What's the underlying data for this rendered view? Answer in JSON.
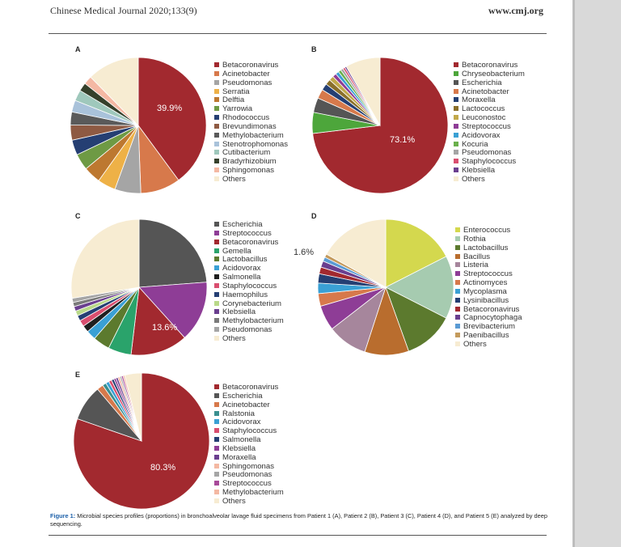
{
  "header": {
    "journal": "Chinese Medical Journal 2020;133(9)",
    "website": "www.cmj.org"
  },
  "caption": {
    "figure": "Figure 1:",
    "text": "Microbial species profiles (proportions) in bronchoalveolar lavage fluid specimens from Patient 1 (A), Patient 2 (B), Patient 3 (C), Patient 4 (D), and Patient 5 (E) analyzed by deep sequencing."
  },
  "chart_data": [
    {
      "panel": "A",
      "type": "pie",
      "highlight_label": "39.9%",
      "labels": [
        "Betacoronavirus",
        "Acinetobacter",
        "Pseudomonas",
        "Serratia",
        "Delftia",
        "Yarrowia",
        "Rhodococcus",
        "Brevundimonas",
        "Methylobacterium",
        "Stenotrophomonas",
        "Cutibacterium",
        "Bradyrhizobium",
        "Sphingomonas",
        "Others"
      ],
      "values": [
        39.9,
        9.5,
        6.2,
        4.3,
        4.1,
        3.9,
        3.6,
        3.6,
        3.1,
        2.8,
        2.6,
        2.0,
        2.0,
        12.4
      ],
      "colors": [
        "#a2292f",
        "#d7794b",
        "#a5a5a5",
        "#eeb147",
        "#bd7830",
        "#6e9a44",
        "#253f73",
        "#8e5a43",
        "#5a5a5a",
        "#a9c2da",
        "#9fc8bc",
        "#35402b",
        "#f4b8a3",
        "#f7ecd2"
      ]
    },
    {
      "panel": "B",
      "type": "pie",
      "highlight_label": "73.1%",
      "labels": [
        "Betacoronavirus",
        "Chryseobacterium",
        "Escherichia",
        "Acinetobacter",
        "Moraxella",
        "Lactococcus",
        "Leuconostoc",
        "Streptococcus",
        "Acidovorax",
        "Kocuria",
        "Pseudomonas",
        "Staphylococcus",
        "Klebsiella",
        "Others"
      ],
      "values": [
        73.1,
        5.0,
        3.5,
        2.2,
        1.6,
        1.3,
        1.1,
        0.9,
        0.8,
        0.7,
        0.6,
        0.5,
        0.4,
        8.3
      ],
      "colors": [
        "#a2292f",
        "#4da63b",
        "#555555",
        "#d7794b",
        "#253f73",
        "#8a6f2a",
        "#c2a94a",
        "#8e3d96",
        "#3aa0d4",
        "#6ab04c",
        "#a5a5a5",
        "#d94e6f",
        "#6a3f8f",
        "#f7ecd2"
      ]
    },
    {
      "panel": "C",
      "type": "pie",
      "highlight_label": "13.6%",
      "labels": [
        "Escherichia",
        "Streptococcus",
        "Betacoronavirus",
        "Gemella",
        "Lactobacillus",
        "Acidovorax",
        "Salmonella",
        "Staphylococcus",
        "Haemophilus",
        "Corynebacterium",
        "Klebsiella",
        "Methylobacterium",
        "Pseudomonas",
        "Others"
      ],
      "values": [
        23.8,
        14.5,
        13.6,
        5.5,
        4.0,
        2.3,
        1.6,
        1.5,
        1.3,
        1.2,
        1.1,
        1.0,
        1.0,
        27.6
      ],
      "colors": [
        "#555555",
        "#8e3d96",
        "#a2292f",
        "#2aa36b",
        "#5c7a2e",
        "#3aa0d4",
        "#1f1f1f",
        "#d94e6f",
        "#253f73",
        "#b9d989",
        "#6a3f8f",
        "#7a7a7a",
        "#a5a5a5",
        "#f7ecd2"
      ]
    },
    {
      "panel": "D",
      "type": "pie",
      "highlight_label": "1.6%",
      "labels": [
        "Enterococcus",
        "Rothia",
        "Lactobacillus",
        "Bacillus",
        "Listeria",
        "Streptococcus",
        "Actinomyces",
        "Mycoplasma",
        "Lysinibacillus",
        "Betacoronavirus",
        "Capnocytophaga",
        "Brevibacterium",
        "Paenibacillus",
        "Others"
      ],
      "values": [
        17.5,
        15.0,
        12.0,
        10.5,
        9.5,
        6.0,
        3.0,
        2.5,
        2.2,
        1.6,
        1.5,
        1.0,
        0.8,
        16.9
      ],
      "colors": [
        "#d4d84e",
        "#a6cbb0",
        "#5c7a2e",
        "#b96d2e",
        "#a6869c",
        "#8e3d96",
        "#d7794b",
        "#3aa0d4",
        "#253f73",
        "#a2292f",
        "#6a3f8f",
        "#5a9bd4",
        "#c49a5c",
        "#f7ecd2"
      ]
    },
    {
      "panel": "E",
      "type": "pie",
      "highlight_label": "80.3%",
      "labels": [
        "Betacoronavirus",
        "Escherichia",
        "Acinetobacter",
        "Ralstonia",
        "Acidovorax",
        "Staphylococcus",
        "Salmonella",
        "Klebsiella",
        "Moraxella",
        "Sphingomonas",
        "Pseudomonas",
        "Streptococcus",
        "Methylobacterium",
        "Others"
      ],
      "values": [
        80.3,
        8.5,
        1.5,
        0.9,
        0.8,
        0.7,
        0.6,
        0.5,
        0.5,
        0.5,
        0.4,
        0.4,
        0.4,
        4.0
      ],
      "colors": [
        "#a2292f",
        "#555555",
        "#d7794b",
        "#3a8f8f",
        "#3aa0d4",
        "#d94e6f",
        "#253f73",
        "#8e3d96",
        "#6a3f8f",
        "#f4b8a3",
        "#a5a5a5",
        "#a84a9a",
        "#f4b8a3",
        "#f7ecd2"
      ]
    }
  ]
}
